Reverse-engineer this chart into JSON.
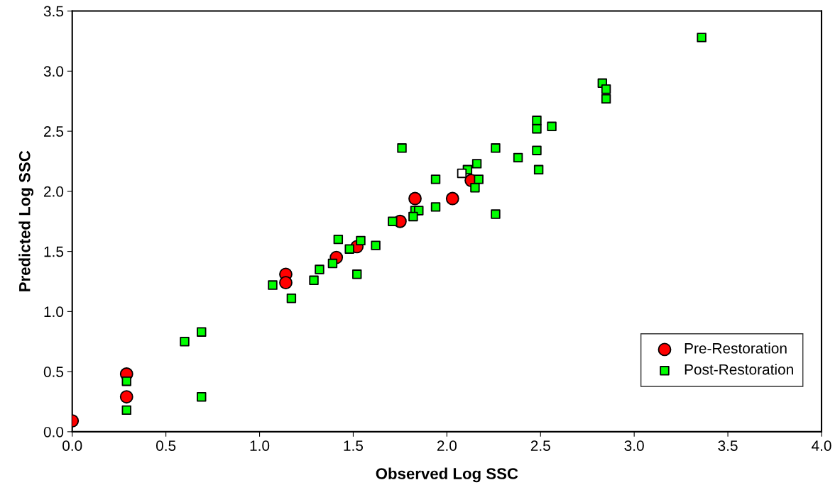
{
  "chart_data": {
    "type": "scatter",
    "xlabel": "Observed Log SSC",
    "ylabel": "Predicted Log SSC",
    "xlim": [
      0,
      4
    ],
    "ylim": [
      0,
      3.5
    ],
    "xticks": [
      {
        "value": 0,
        "label": "0.0"
      },
      {
        "value": 0.5,
        "label": "0.5"
      },
      {
        "value": 1,
        "label": "1.0"
      },
      {
        "value": 1.5,
        "label": "1.5"
      },
      {
        "value": 2,
        "label": "2.0"
      },
      {
        "value": 2.5,
        "label": "2.5"
      },
      {
        "value": 3,
        "label": "3.0"
      },
      {
        "value": 3.5,
        "label": "3.5"
      },
      {
        "value": 4,
        "label": "4.0"
      }
    ],
    "yticks": [
      {
        "value": 0,
        "label": "0.0"
      },
      {
        "value": 0.5,
        "label": "0.5"
      },
      {
        "value": 1,
        "label": "1.0"
      },
      {
        "value": 1.5,
        "label": "1.5"
      },
      {
        "value": 2,
        "label": "2.0"
      },
      {
        "value": 2.5,
        "label": "2.5"
      },
      {
        "value": 3,
        "label": "3.0"
      },
      {
        "value": 3.5,
        "label": "3.5"
      }
    ],
    "grid": false,
    "legend": "bottom right",
    "series": [
      {
        "name": "Pre-Restoration",
        "color": "#ff0000",
        "marker": "circle",
        "x": [
          0,
          0.29,
          0.29,
          1.14,
          1.14,
          1.41,
          1.52,
          1.75,
          1.83,
          2.03,
          2.13
        ],
        "values": [
          0.09,
          0.48,
          0.29,
          1.31,
          1.24,
          1.45,
          1.54,
          1.75,
          1.94,
          1.94,
          2.09
        ]
      },
      {
        "name": "Post-Restoration",
        "color": "#00ff00",
        "marker": "square",
        "x": [
          0.29,
          0.29,
          0.6,
          0.69,
          0.69,
          1.07,
          1.17,
          1.29,
          1.32,
          1.39,
          1.42,
          1.48,
          1.54,
          1.52,
          1.62,
          1.71,
          1.76,
          1.94,
          1.94,
          1.83,
          1.85,
          1.82,
          2.11,
          2.16,
          2.17,
          2.15,
          2.26,
          2.26,
          2.38,
          2.48,
          2.48,
          2.48,
          2.49,
          2.56,
          2.83,
          2.85,
          2.85,
          3.36
        ],
        "values": [
          0.42,
          0.18,
          0.75,
          0.83,
          0.29,
          1.22,
          1.11,
          1.26,
          1.35,
          1.4,
          1.6,
          1.52,
          1.59,
          1.31,
          1.55,
          1.75,
          2.36,
          2.1,
          1.87,
          1.84,
          1.84,
          1.79,
          2.18,
          2.23,
          2.1,
          2.03,
          2.36,
          1.81,
          2.28,
          2.59,
          2.52,
          2.34,
          2.18,
          2.54,
          2.9,
          2.85,
          2.77,
          3.28
        ]
      },
      {
        "color": "#ffffff",
        "marker": "square",
        "x": [
          2.08
        ],
        "values": [
          2.15
        ]
      }
    ]
  }
}
